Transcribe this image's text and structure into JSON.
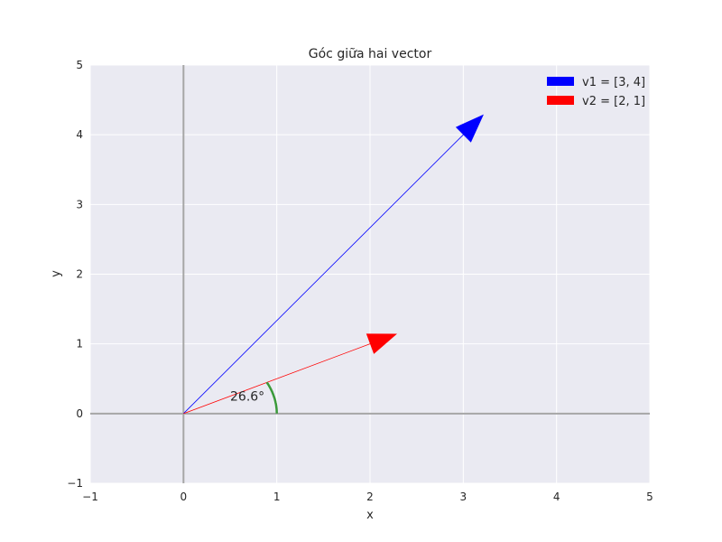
{
  "chart_data": {
    "type": "vector",
    "title": "Góc giữa hai vector",
    "xlabel": "x",
    "ylabel": "y",
    "xlim": [
      -1,
      5
    ],
    "ylim": [
      -1,
      5
    ],
    "xticks": [
      -1,
      0,
      1,
      2,
      3,
      4,
      5
    ],
    "yticks": [
      -1,
      0,
      1,
      2,
      3,
      4,
      5
    ],
    "xtick_labels": [
      "−1",
      "0",
      "1",
      "2",
      "3",
      "4",
      "5"
    ],
    "ytick_labels": [
      "−1",
      "0",
      "1",
      "2",
      "3",
      "4",
      "5"
    ],
    "grid": true,
    "legend_position": "top-right",
    "series": [
      {
        "name": "v1 = [3, 4]",
        "x": [
          0,
          3
        ],
        "y": [
          0,
          4
        ],
        "color": "#0000ff"
      },
      {
        "name": "v2 = [2, 1]",
        "x": [
          0,
          2
        ],
        "y": [
          0,
          1
        ],
        "color": "#ff0000"
      }
    ],
    "angle": {
      "label": "26.6°",
      "value_deg": 26.6,
      "from_deg": 0,
      "to_deg": 26.6,
      "radius": 1,
      "color": "#3a9a3a"
    },
    "colors": {
      "background": "#eaeaf2",
      "grid": "#ffffff",
      "axis_line": "#a6a6a6"
    }
  }
}
